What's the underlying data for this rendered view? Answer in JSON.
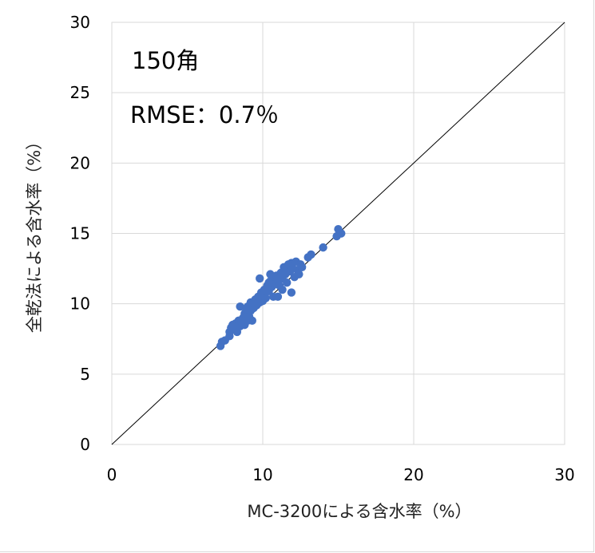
{
  "chart_data": {
    "type": "scatter",
    "title": "",
    "xlabel": "MC-3200による含水率（%）",
    "ylabel": "全乾法による含水率（%）",
    "xlim": [
      0,
      30
    ],
    "ylim": [
      0,
      30
    ],
    "x_ticks": [
      "0",
      "10",
      "20",
      "30"
    ],
    "y_ticks": [
      "0",
      "5",
      "10",
      "15",
      "20",
      "25",
      "30"
    ],
    "grid": true,
    "reference_line": "y = x",
    "annotations": [
      "150角",
      "RMSE：0.7％"
    ],
    "marker_color": "#4472C4",
    "series": [
      {
        "points": [
          [
            7.2,
            7.0
          ],
          [
            7.3,
            7.3
          ],
          [
            7.5,
            7.4
          ],
          [
            7.8,
            7.7
          ],
          [
            7.8,
            8.0
          ],
          [
            7.9,
            8.3
          ],
          [
            8.0,
            8.5
          ],
          [
            8.1,
            8.2
          ],
          [
            8.2,
            8.6
          ],
          [
            8.3,
            8.0
          ],
          [
            8.4,
            8.8
          ],
          [
            8.5,
            8.4
          ],
          [
            8.5,
            9.8
          ],
          [
            8.6,
            8.7
          ],
          [
            8.7,
            9.0
          ],
          [
            8.8,
            8.5
          ],
          [
            8.8,
            9.3
          ],
          [
            8.9,
            9.6
          ],
          [
            9.0,
            8.8
          ],
          [
            9.0,
            9.8
          ],
          [
            9.1,
            9.1
          ],
          [
            9.2,
            9.5
          ],
          [
            9.2,
            10.1
          ],
          [
            9.3,
            8.8
          ],
          [
            9.4,
            9.7
          ],
          [
            9.5,
            10.3
          ],
          [
            9.6,
            9.9
          ],
          [
            9.7,
            10.5
          ],
          [
            9.8,
            10.1
          ],
          [
            9.8,
            11.8
          ],
          [
            9.9,
            10.8
          ],
          [
            10.0,
            10.2
          ],
          [
            10.0,
            10.6
          ],
          [
            10.1,
            11.0
          ],
          [
            10.2,
            10.4
          ],
          [
            10.3,
            11.3
          ],
          [
            10.4,
            10.9
          ],
          [
            10.5,
            11.6
          ],
          [
            10.5,
            12.1
          ],
          [
            10.6,
            11.2
          ],
          [
            10.7,
            10.5
          ],
          [
            10.7,
            11.9
          ],
          [
            10.8,
            11.4
          ],
          [
            10.9,
            12.0
          ],
          [
            11.0,
            11.7
          ],
          [
            11.0,
            10.5
          ],
          [
            11.1,
            11.3
          ],
          [
            11.2,
            12.2
          ],
          [
            11.3,
            11.8
          ],
          [
            11.4,
            12.6
          ],
          [
            11.5,
            12.1
          ],
          [
            11.6,
            11.5
          ],
          [
            11.7,
            12.8
          ],
          [
            11.8,
            12.3
          ],
          [
            11.9,
            10.8
          ],
          [
            11.9,
            12.9
          ],
          [
            12.0,
            12.5
          ],
          [
            12.1,
            11.9
          ],
          [
            12.2,
            13.0
          ],
          [
            12.3,
            12.4
          ],
          [
            12.4,
            12.1
          ],
          [
            12.5,
            12.8
          ],
          [
            12.6,
            12.6
          ],
          [
            13.0,
            13.3
          ],
          [
            13.2,
            13.5
          ],
          [
            14.0,
            14.0
          ],
          [
            14.9,
            14.8
          ],
          [
            15.0,
            15.3
          ],
          [
            15.2,
            15.0
          ],
          [
            10.4,
            11.5
          ],
          [
            11.3,
            11.0
          ],
          [
            9.4,
            10.0
          ]
        ]
      }
    ]
  }
}
